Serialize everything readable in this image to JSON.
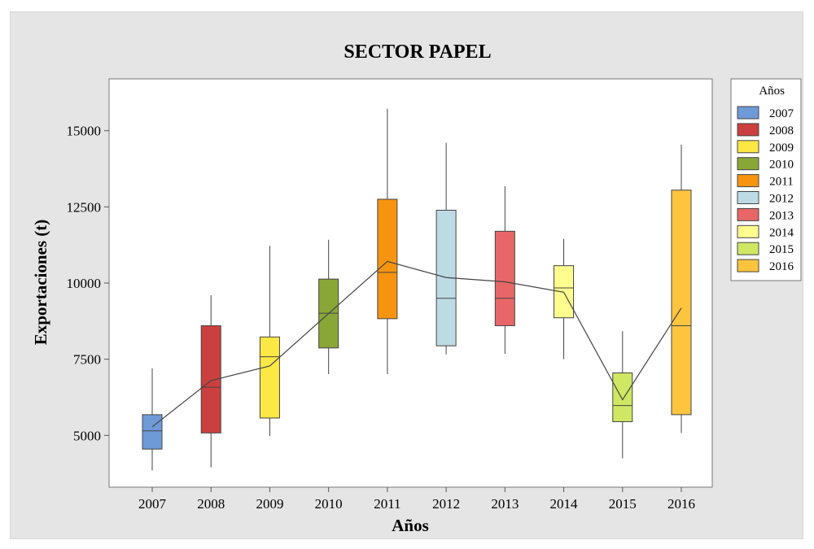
{
  "chart_data": {
    "type": "box",
    "title": "SECTOR PAPEL",
    "xlabel": "Años",
    "ylabel": "Exportaciones (t)",
    "ylim": [
      3300,
      16700
    ],
    "yticks": [
      5000,
      7500,
      10000,
      12500,
      15000
    ],
    "categories": [
      "2007",
      "2008",
      "2009",
      "2010",
      "2011",
      "2012",
      "2013",
      "2014",
      "2015",
      "2016"
    ],
    "legend": {
      "title": "Años",
      "position": "right"
    },
    "grid": false,
    "mean_line": true,
    "series": [
      {
        "name": "2007",
        "color": "#6f9ad8",
        "min": 3850,
        "q1": 4550,
        "median": 5150,
        "q3": 5680,
        "max": 7200,
        "mean": 5280
      },
      {
        "name": "2008",
        "color": "#cc3f3f",
        "min": 3950,
        "q1": 5080,
        "median": 6580,
        "q3": 8600,
        "max": 9600,
        "mean": 6800
      },
      {
        "name": "2009",
        "color": "#fde745",
        "min": 4980,
        "q1": 5570,
        "median": 7580,
        "q3": 8230,
        "max": 11220,
        "mean": 7280
      },
      {
        "name": "2010",
        "color": "#89a737",
        "min": 7010,
        "q1": 7870,
        "median": 9010,
        "q3": 10130,
        "max": 11420,
        "mean": 9000
      },
      {
        "name": "2011",
        "color": "#f7940f",
        "min": 7010,
        "q1": 8830,
        "median": 10350,
        "q3": 12750,
        "max": 15720,
        "mean": 10710
      },
      {
        "name": "2012",
        "color": "#bddbe5",
        "min": 7660,
        "q1": 7940,
        "median": 9500,
        "q3": 12390,
        "max": 14600,
        "mean": 10180
      },
      {
        "name": "2013",
        "color": "#e86667",
        "min": 7680,
        "q1": 8600,
        "median": 9500,
        "q3": 11700,
        "max": 13180,
        "mean": 10040
      },
      {
        "name": "2014",
        "color": "#fefe8e",
        "min": 7500,
        "q1": 8860,
        "median": 9840,
        "q3": 10570,
        "max": 11450,
        "mean": 9700
      },
      {
        "name": "2015",
        "color": "#cfe763",
        "min": 4250,
        "q1": 5450,
        "median": 5980,
        "q3": 7050,
        "max": 8420,
        "mean": 6170
      },
      {
        "name": "2016",
        "color": "#fdc43e",
        "min": 5080,
        "q1": 5680,
        "median": 8600,
        "q3": 13050,
        "max": 14540,
        "mean": 9180
      }
    ]
  }
}
